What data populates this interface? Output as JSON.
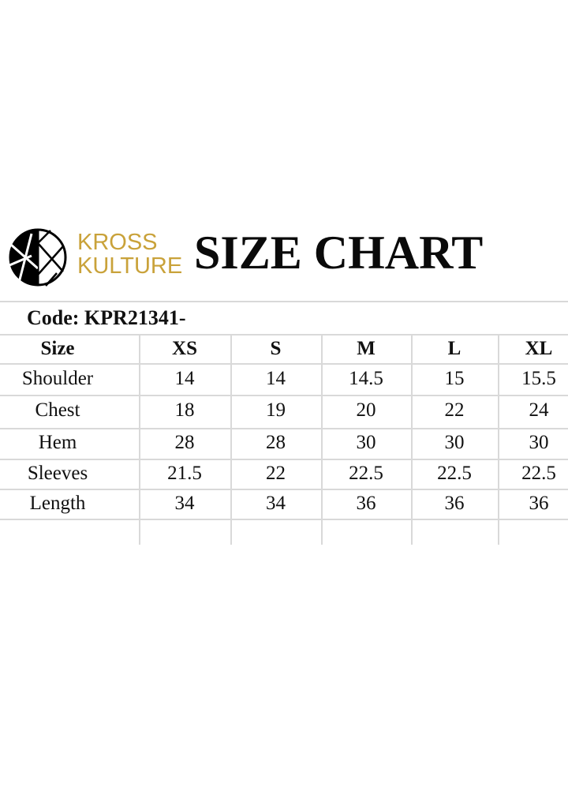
{
  "brand": {
    "line1": "KROSS",
    "line2": "KULTURE",
    "color": "#c9a23a"
  },
  "title": "SIZE CHART",
  "code": "Code: KPR21341-",
  "table": {
    "headers": [
      "Size",
      "XS",
      "S",
      "M",
      "L",
      "XL"
    ],
    "rows": [
      [
        "Shoulder",
        "14",
        "14",
        "14.5",
        "15",
        "15.5"
      ],
      [
        "Chest",
        "18",
        "19",
        "20",
        "22",
        "24"
      ],
      [
        "Hem",
        "28",
        "28",
        "30",
        "30",
        "30"
      ],
      [
        "Sleeves",
        "21.5",
        "22",
        "22.5",
        "22.5",
        "22.5"
      ],
      [
        "Length",
        "34",
        "34",
        "36",
        "36",
        "36"
      ]
    ]
  }
}
